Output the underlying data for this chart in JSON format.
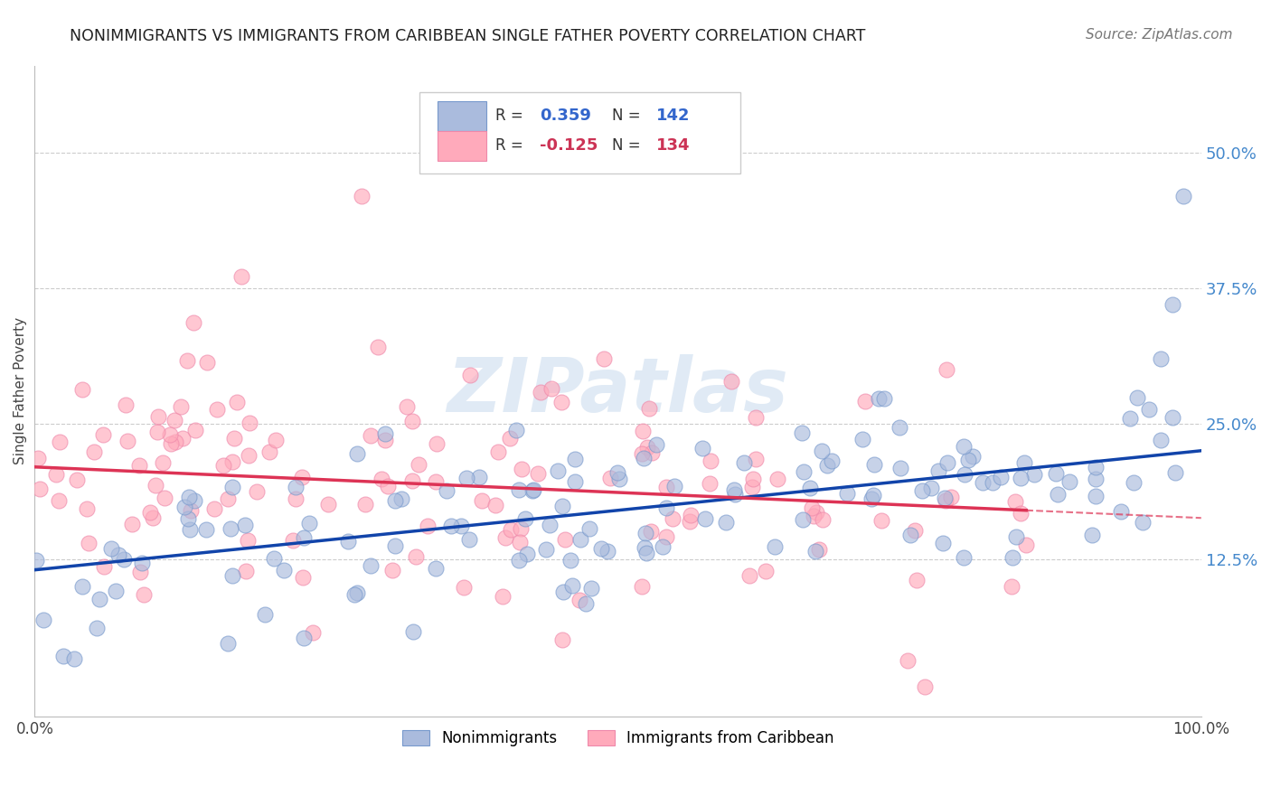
{
  "title": "NONIMMIGRANTS VS IMMIGRANTS FROM CARIBBEAN SINGLE FATHER POVERTY CORRELATION CHART",
  "source": "Source: ZipAtlas.com",
  "ylabel": "Single Father Poverty",
  "legend_label_blue": "Nonimmigrants",
  "legend_label_pink": "Immigrants from Caribbean",
  "r_blue": 0.359,
  "n_blue": 142,
  "r_pink": -0.125,
  "n_pink": 134,
  "yticks": [
    0.125,
    0.25,
    0.375,
    0.5
  ],
  "ytick_labels": [
    "12.5%",
    "25.0%",
    "37.5%",
    "50.0%"
  ],
  "xlim": [
    0.0,
    1.0
  ],
  "ylim": [
    -0.02,
    0.58
  ],
  "blue_color": "#AABBDD",
  "pink_color": "#FFAABB",
  "blue_edge_color": "#7799CC",
  "pink_edge_color": "#EE88AA",
  "blue_line_color": "#1144AA",
  "pink_line_color": "#DD3355",
  "ytick_color": "#4488CC",
  "watermark_color": "#CCDDEF",
  "blue_seed": 7,
  "pink_seed": 13
}
